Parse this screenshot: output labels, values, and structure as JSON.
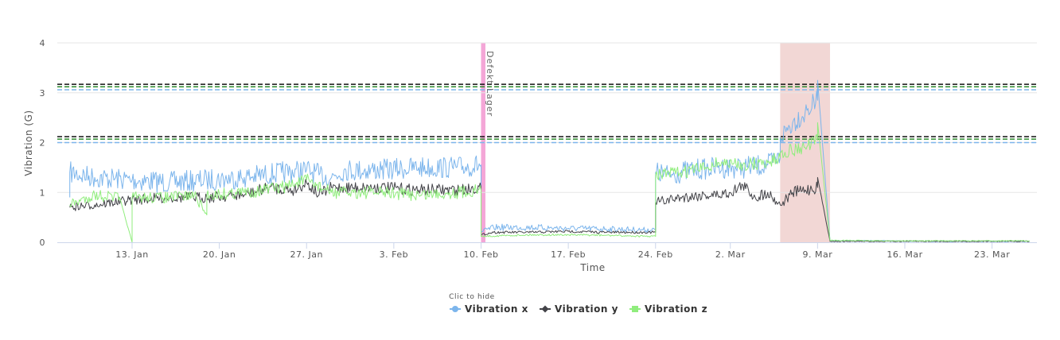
{
  "chart_data": {
    "type": "line",
    "title": "",
    "xlabel": "Time",
    "ylabel": "Vibration (G)",
    "ylim": [
      0,
      4
    ],
    "xlim": [
      "2025-01-07",
      "2025-03-26"
    ],
    "yticks": [
      0,
      1,
      2,
      3,
      4
    ],
    "xticks": [
      {
        "date": "2025-01-13",
        "label": "13. Jan"
      },
      {
        "date": "2025-01-20",
        "label": "20. Jan"
      },
      {
        "date": "2025-01-27",
        "label": "27. Jan"
      },
      {
        "date": "2025-02-03",
        "label": "3. Feb"
      },
      {
        "date": "2025-02-10",
        "label": "10. Feb"
      },
      {
        "date": "2025-02-17",
        "label": "17. Feb"
      },
      {
        "date": "2025-02-24",
        "label": "24. Feb"
      },
      {
        "date": "2025-03-02",
        "label": "2. Mar"
      },
      {
        "date": "2025-03-09",
        "label": "9. Mar"
      },
      {
        "date": "2025-03-16",
        "label": "16. Mar"
      },
      {
        "date": "2025-03-23",
        "label": "23. Mar"
      }
    ],
    "grid": true,
    "legend": {
      "title": "Clic to hide",
      "placement": "bottom-center"
    },
    "series": [
      {
        "name": "Vibration x",
        "color": "#7cb5ec",
        "marker": "circle",
        "points": [
          [
            "2025-01-08",
            0.9
          ],
          [
            "2025-01-08",
            1.4
          ],
          [
            "2025-01-10",
            1.3
          ],
          [
            "2025-01-13",
            1.25
          ],
          [
            "2025-01-16",
            1.2
          ],
          [
            "2025-01-19",
            1.25
          ],
          [
            "2025-01-22",
            1.3
          ],
          [
            "2025-01-25",
            1.4
          ],
          [
            "2025-01-27",
            1.45
          ],
          [
            "2025-01-28",
            1.35
          ],
          [
            "2025-01-29",
            1.3
          ],
          [
            "2025-01-30",
            1.45
          ],
          [
            "2025-02-02",
            1.45
          ],
          [
            "2025-02-05",
            1.5
          ],
          [
            "2025-02-08",
            1.5
          ],
          [
            "2025-02-10",
            1.55
          ],
          [
            "2025-02-10",
            0.2
          ],
          [
            "2025-02-11",
            0.3
          ],
          [
            "2025-02-14",
            0.3
          ],
          [
            "2025-02-17",
            0.28
          ],
          [
            "2025-02-20",
            0.27
          ],
          [
            "2025-02-23",
            0.25
          ],
          [
            "2025-02-24",
            0.25
          ],
          [
            "2025-02-24",
            1.4
          ],
          [
            "2025-02-25",
            1.35
          ],
          [
            "2025-02-27",
            1.45
          ],
          [
            "2025-03-01",
            1.5
          ],
          [
            "2025-03-03",
            1.5
          ],
          [
            "2025-03-05",
            1.55
          ],
          [
            "2025-03-06",
            1.7
          ],
          [
            "2025-03-06",
            2.1
          ],
          [
            "2025-03-07",
            2.4
          ],
          [
            "2025-03-08",
            2.6
          ],
          [
            "2025-03-09",
            2.85
          ],
          [
            "2025-03-09",
            3.25
          ],
          [
            "2025-03-10",
            0.03
          ],
          [
            "2025-03-14",
            0.03
          ],
          [
            "2025-03-18",
            0.02
          ],
          [
            "2025-03-22",
            0.02
          ],
          [
            "2025-03-26",
            0.02
          ]
        ]
      },
      {
        "name": "Vibration y",
        "color": "#434348",
        "marker": "diamond",
        "points": [
          [
            "2025-01-08",
            0.7
          ],
          [
            "2025-01-10",
            0.75
          ],
          [
            "2025-01-13",
            0.85
          ],
          [
            "2025-01-16",
            0.9
          ],
          [
            "2025-01-19",
            0.9
          ],
          [
            "2025-01-22",
            0.95
          ],
          [
            "2025-01-24",
            1.1
          ],
          [
            "2025-01-26",
            1.05
          ],
          [
            "2025-01-27",
            1.2
          ],
          [
            "2025-01-28",
            0.95
          ],
          [
            "2025-01-29",
            1.1
          ],
          [
            "2025-01-30",
            1.1
          ],
          [
            "2025-02-02",
            1.1
          ],
          [
            "2025-02-05",
            1.05
          ],
          [
            "2025-02-08",
            1.05
          ],
          [
            "2025-02-10",
            1.1
          ],
          [
            "2025-02-10",
            0.15
          ],
          [
            "2025-02-11",
            0.2
          ],
          [
            "2025-02-14",
            0.2
          ],
          [
            "2025-02-17",
            0.22
          ],
          [
            "2025-02-20",
            0.2
          ],
          [
            "2025-02-23",
            0.2
          ],
          [
            "2025-02-24",
            0.2
          ],
          [
            "2025-02-24",
            0.8
          ],
          [
            "2025-02-26",
            0.9
          ],
          [
            "2025-02-28",
            0.95
          ],
          [
            "2025-03-01",
            0.95
          ],
          [
            "2025-03-02",
            1.0
          ],
          [
            "2025-03-03",
            1.15
          ],
          [
            "2025-03-04",
            0.9
          ],
          [
            "2025-03-05",
            1.0
          ],
          [
            "2025-03-06",
            0.75
          ],
          [
            "2025-03-07",
            1.0
          ],
          [
            "2025-03-08",
            1.05
          ],
          [
            "2025-03-09",
            1.1
          ],
          [
            "2025-03-09",
            1.3
          ],
          [
            "2025-03-10",
            0.02
          ],
          [
            "2025-03-14",
            0.02
          ],
          [
            "2025-03-18",
            0.02
          ],
          [
            "2025-03-22",
            0.02
          ],
          [
            "2025-03-26",
            0.02
          ]
        ]
      },
      {
        "name": "Vibration z",
        "color": "#90ed7d",
        "marker": "square",
        "points": [
          [
            "2025-01-08",
            0.75
          ],
          [
            "2025-01-10",
            0.95
          ],
          [
            "2025-01-12",
            0.9
          ],
          [
            "2025-01-13",
            0.0
          ],
          [
            "2025-01-13",
            0.9
          ],
          [
            "2025-01-16",
            0.9
          ],
          [
            "2025-01-18",
            0.95
          ],
          [
            "2025-01-19",
            0.55
          ],
          [
            "2025-01-19",
            0.95
          ],
          [
            "2025-01-22",
            1.0
          ],
          [
            "2025-01-25",
            1.1
          ],
          [
            "2025-01-27",
            1.25
          ],
          [
            "2025-01-29",
            1.0
          ],
          [
            "2025-02-02",
            1.0
          ],
          [
            "2025-02-05",
            0.95
          ],
          [
            "2025-02-08",
            1.0
          ],
          [
            "2025-02-10",
            1.05
          ],
          [
            "2025-02-10",
            0.12
          ],
          [
            "2025-02-14",
            0.15
          ],
          [
            "2025-02-17",
            0.15
          ],
          [
            "2025-02-20",
            0.14
          ],
          [
            "2025-02-23",
            0.12
          ],
          [
            "2025-02-24",
            0.12
          ],
          [
            "2025-02-24",
            1.35
          ],
          [
            "2025-02-26",
            1.4
          ],
          [
            "2025-02-28",
            1.5
          ],
          [
            "2025-03-01",
            1.6
          ],
          [
            "2025-03-03",
            1.55
          ],
          [
            "2025-03-05",
            1.6
          ],
          [
            "2025-03-06",
            1.7
          ],
          [
            "2025-03-06",
            1.8
          ],
          [
            "2025-03-08",
            1.9
          ],
          [
            "2025-03-09",
            2.05
          ],
          [
            "2025-03-09",
            2.4
          ],
          [
            "2025-03-10",
            0.04
          ],
          [
            "2025-03-14",
            0.03
          ],
          [
            "2025-03-18",
            0.03
          ],
          [
            "2025-03-22",
            0.03
          ],
          [
            "2025-03-26",
            0.03
          ]
        ]
      }
    ],
    "threshold_lines": [
      {
        "value": 3.17,
        "color": "#111111"
      },
      {
        "value": 3.12,
        "color": "#2e8b2e"
      },
      {
        "value": 3.06,
        "color": "#7cb5ec"
      },
      {
        "value": 2.12,
        "color": "#111111"
      },
      {
        "value": 2.07,
        "color": "#2e8b2e"
      },
      {
        "value": 2.0,
        "color": "#7cb5ec"
      }
    ],
    "plot_bands": [
      {
        "from": "2025-02-10",
        "to": "2025-02-10",
        "color": "#f4a6d7",
        "label": "Defekt Lager"
      },
      {
        "from": "2025-03-06",
        "to": "2025-03-10",
        "color": "#f2d7d5",
        "label": ""
      }
    ]
  }
}
